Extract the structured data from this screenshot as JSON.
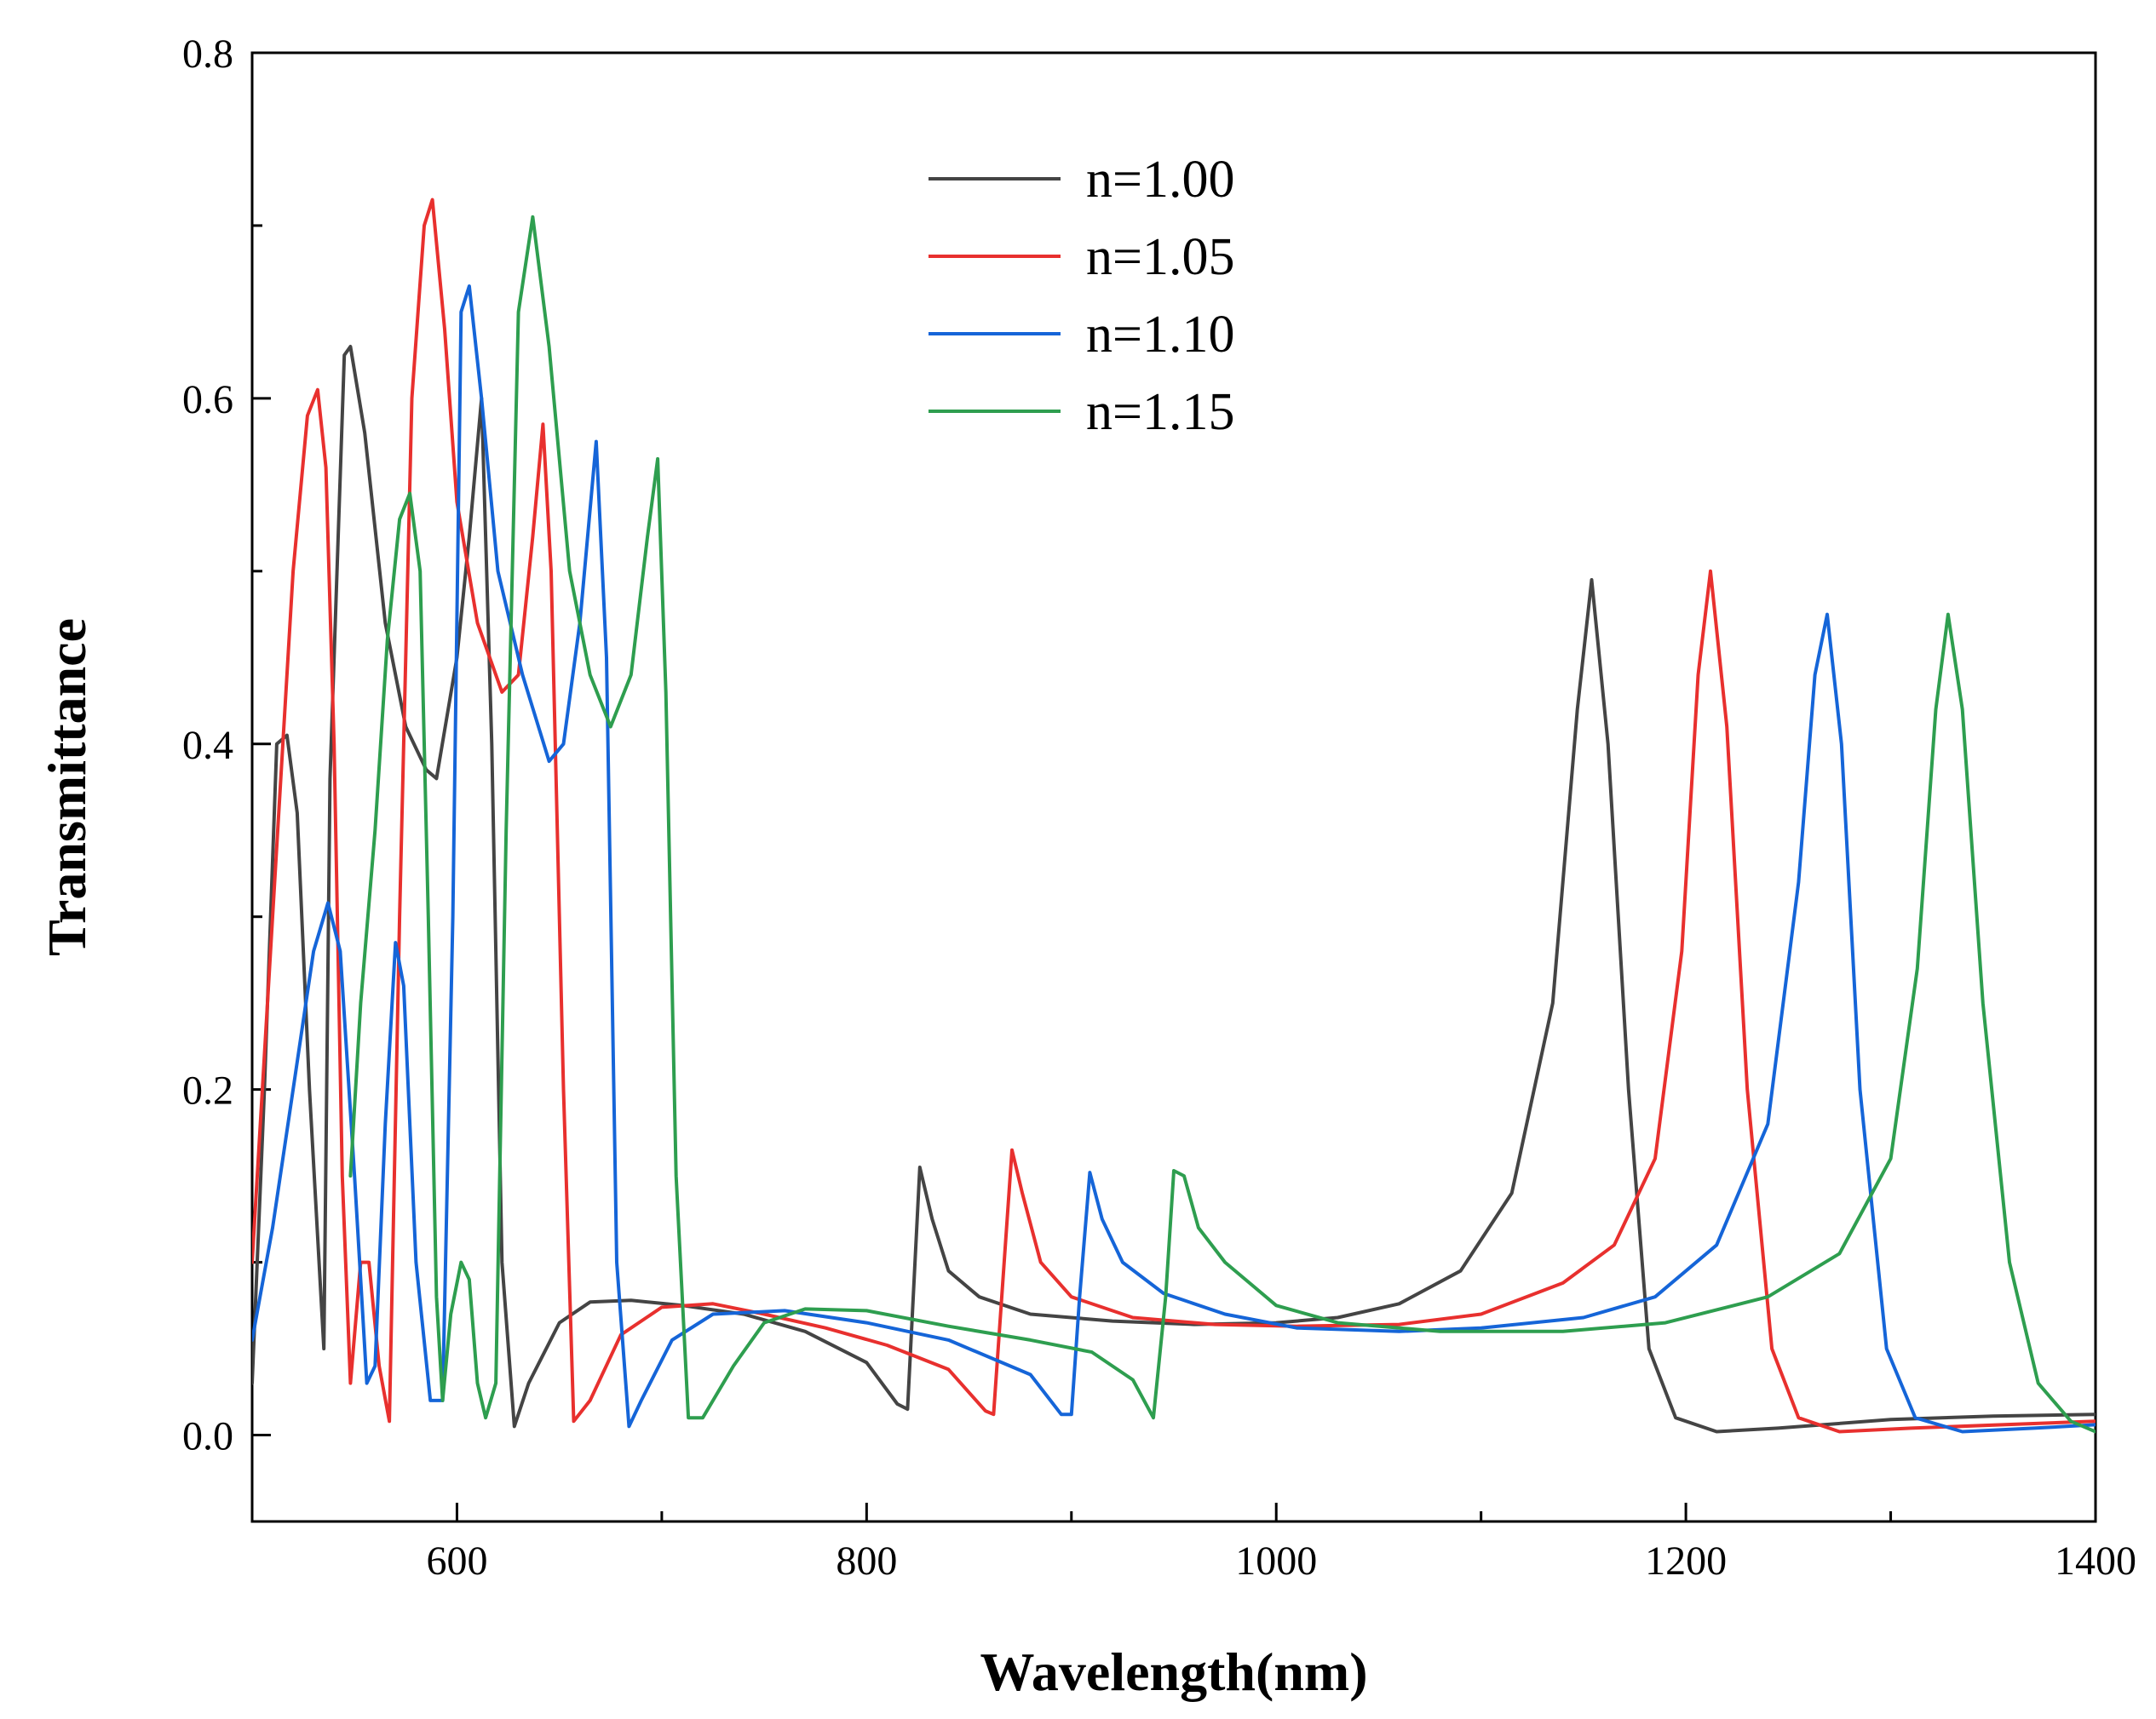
{
  "chart_data": {
    "type": "line",
    "title": "",
    "xlabel": "Wavelength(nm)",
    "ylabel": "Transmittance",
    "xlim": [
      500,
      1400
    ],
    "ylim": [
      -0.05,
      0.8
    ],
    "xticks": [
      600,
      800,
      1000,
      1200,
      1400
    ],
    "xtick_labels": [
      "600",
      "800",
      "1000",
      "1200",
      "1400"
    ],
    "xminor": [
      500,
      700,
      900,
      1100,
      1300
    ],
    "yticks": [
      0.0,
      0.2,
      0.4,
      0.6,
      0.8
    ],
    "ytick_labels": [
      "0.0",
      "0.2",
      "0.4",
      "0.6",
      "0.8"
    ],
    "yminor": [
      0.1,
      0.3,
      0.5,
      0.7
    ],
    "grid": false,
    "legend_position": "top-center",
    "series": [
      {
        "name": "n=1.00",
        "color": "#444444",
        "points": [
          [
            500,
            0.03
          ],
          [
            506,
            0.2
          ],
          [
            512,
            0.4
          ],
          [
            517,
            0.405
          ],
          [
            522,
            0.36
          ],
          [
            528,
            0.2
          ],
          [
            535,
            0.05
          ],
          [
            538,
            0.38
          ],
          [
            545,
            0.625
          ],
          [
            548,
            0.63
          ],
          [
            555,
            0.58
          ],
          [
            565,
            0.47
          ],
          [
            575,
            0.41
          ],
          [
            585,
            0.385
          ],
          [
            590,
            0.38
          ],
          [
            600,
            0.45
          ],
          [
            606,
            0.52
          ],
          [
            612,
            0.6
          ],
          [
            617,
            0.4
          ],
          [
            622,
            0.1
          ],
          [
            628,
            0.005
          ],
          [
            635,
            0.03
          ],
          [
            650,
            0.065
          ],
          [
            665,
            0.077
          ],
          [
            685,
            0.078
          ],
          [
            710,
            0.075
          ],
          [
            740,
            0.07
          ],
          [
            770,
            0.06
          ],
          [
            800,
            0.042
          ],
          [
            815,
            0.018
          ],
          [
            820,
            0.015
          ],
          [
            826,
            0.155
          ],
          [
            832,
            0.125
          ],
          [
            840,
            0.095
          ],
          [
            855,
            0.08
          ],
          [
            880,
            0.07
          ],
          [
            920,
            0.066
          ],
          [
            960,
            0.064
          ],
          [
            1000,
            0.065
          ],
          [
            1030,
            0.068
          ],
          [
            1060,
            0.076
          ],
          [
            1090,
            0.095
          ],
          [
            1115,
            0.14
          ],
          [
            1135,
            0.25
          ],
          [
            1147,
            0.42
          ],
          [
            1154,
            0.495
          ],
          [
            1162,
            0.4
          ],
          [
            1172,
            0.2
          ],
          [
            1182,
            0.05
          ],
          [
            1195,
            0.01
          ],
          [
            1215,
            0.002
          ],
          [
            1245,
            0.004
          ],
          [
            1300,
            0.009
          ],
          [
            1350,
            0.011
          ],
          [
            1400,
            0.012
          ]
        ]
      },
      {
        "name": "n=1.05",
        "color": "#e8302e",
        "points": [
          [
            500,
            0.1
          ],
          [
            510,
            0.3
          ],
          [
            520,
            0.5
          ],
          [
            527,
            0.59
          ],
          [
            532,
            0.605
          ],
          [
            536,
            0.56
          ],
          [
            540,
            0.4
          ],
          [
            544,
            0.15
          ],
          [
            548,
            0.03
          ],
          [
            553,
            0.1
          ],
          [
            557,
            0.1
          ],
          [
            562,
            0.04
          ],
          [
            567,
            0.008
          ],
          [
            572,
            0.3
          ],
          [
            578,
            0.6
          ],
          [
            584,
            0.7
          ],
          [
            588,
            0.715
          ],
          [
            594,
            0.64
          ],
          [
            600,
            0.54
          ],
          [
            610,
            0.47
          ],
          [
            622,
            0.43
          ],
          [
            630,
            0.44
          ],
          [
            637,
            0.52
          ],
          [
            642,
            0.585
          ],
          [
            646,
            0.5
          ],
          [
            652,
            0.2
          ],
          [
            657,
            0.008
          ],
          [
            665,
            0.02
          ],
          [
            680,
            0.058
          ],
          [
            700,
            0.074
          ],
          [
            725,
            0.076
          ],
          [
            750,
            0.07
          ],
          [
            780,
            0.062
          ],
          [
            810,
            0.052
          ],
          [
            840,
            0.038
          ],
          [
            858,
            0.014
          ],
          [
            862,
            0.012
          ],
          [
            866,
            0.08
          ],
          [
            871,
            0.165
          ],
          [
            876,
            0.14
          ],
          [
            885,
            0.1
          ],
          [
            900,
            0.08
          ],
          [
            930,
            0.068
          ],
          [
            970,
            0.064
          ],
          [
            1010,
            0.063
          ],
          [
            1060,
            0.064
          ],
          [
            1100,
            0.07
          ],
          [
            1140,
            0.088
          ],
          [
            1165,
            0.11
          ],
          [
            1185,
            0.16
          ],
          [
            1198,
            0.28
          ],
          [
            1206,
            0.44
          ],
          [
            1212,
            0.5
          ],
          [
            1220,
            0.41
          ],
          [
            1230,
            0.2
          ],
          [
            1242,
            0.05
          ],
          [
            1255,
            0.01
          ],
          [
            1275,
            0.002
          ],
          [
            1310,
            0.004
          ],
          [
            1400,
            0.008
          ]
        ]
      },
      {
        "name": "n=1.10",
        "color": "#1565d8",
        "points": [
          [
            500,
            0.055
          ],
          [
            510,
            0.12
          ],
          [
            520,
            0.2
          ],
          [
            530,
            0.28
          ],
          [
            537,
            0.308
          ],
          [
            543,
            0.28
          ],
          [
            550,
            0.15
          ],
          [
            556,
            0.03
          ],
          [
            560,
            0.04
          ],
          [
            565,
            0.18
          ],
          [
            570,
            0.285
          ],
          [
            574,
            0.26
          ],
          [
            580,
            0.1
          ],
          [
            587,
            0.02
          ],
          [
            593,
            0.02
          ],
          [
            598,
            0.3
          ],
          [
            602,
            0.65
          ],
          [
            606,
            0.665
          ],
          [
            612,
            0.6
          ],
          [
            620,
            0.5
          ],
          [
            632,
            0.44
          ],
          [
            645,
            0.39
          ],
          [
            652,
            0.4
          ],
          [
            660,
            0.47
          ],
          [
            668,
            0.575
          ],
          [
            673,
            0.45
          ],
          [
            678,
            0.1
          ],
          [
            684,
            0.005
          ],
          [
            690,
            0.02
          ],
          [
            705,
            0.055
          ],
          [
            725,
            0.07
          ],
          [
            760,
            0.072
          ],
          [
            800,
            0.065
          ],
          [
            840,
            0.055
          ],
          [
            880,
            0.035
          ],
          [
            895,
            0.012
          ],
          [
            900,
            0.012
          ],
          [
            904,
            0.08
          ],
          [
            909,
            0.152
          ],
          [
            915,
            0.125
          ],
          [
            925,
            0.1
          ],
          [
            945,
            0.082
          ],
          [
            975,
            0.07
          ],
          [
            1010,
            0.062
          ],
          [
            1060,
            0.06
          ],
          [
            1100,
            0.062
          ],
          [
            1150,
            0.068
          ],
          [
            1185,
            0.08
          ],
          [
            1215,
            0.11
          ],
          [
            1240,
            0.18
          ],
          [
            1255,
            0.32
          ],
          [
            1263,
            0.44
          ],
          [
            1269,
            0.475
          ],
          [
            1276,
            0.4
          ],
          [
            1285,
            0.2
          ],
          [
            1298,
            0.05
          ],
          [
            1312,
            0.01
          ],
          [
            1335,
            0.002
          ],
          [
            1370,
            0.004
          ],
          [
            1400,
            0.006
          ]
        ]
      },
      {
        "name": "n=1.15",
        "color": "#2e9e4f",
        "points": [
          [
            548,
            0.15
          ],
          [
            553,
            0.25
          ],
          [
            560,
            0.35
          ],
          [
            566,
            0.46
          ],
          [
            572,
            0.53
          ],
          [
            577,
            0.545
          ],
          [
            582,
            0.5
          ],
          [
            586,
            0.3
          ],
          [
            590,
            0.08
          ],
          [
            593,
            0.02
          ],
          [
            597,
            0.07
          ],
          [
            602,
            0.1
          ],
          [
            606,
            0.09
          ],
          [
            610,
            0.03
          ],
          [
            614,
            0.01
          ],
          [
            619,
            0.03
          ],
          [
            624,
            0.35
          ],
          [
            630,
            0.65
          ],
          [
            637,
            0.705
          ],
          [
            645,
            0.63
          ],
          [
            655,
            0.5
          ],
          [
            665,
            0.44
          ],
          [
            675,
            0.41
          ],
          [
            685,
            0.44
          ],
          [
            693,
            0.52
          ],
          [
            698,
            0.565
          ],
          [
            702,
            0.43
          ],
          [
            707,
            0.15
          ],
          [
            713,
            0.01
          ],
          [
            720,
            0.01
          ],
          [
            735,
            0.04
          ],
          [
            750,
            0.065
          ],
          [
            770,
            0.073
          ],
          [
            800,
            0.072
          ],
          [
            840,
            0.063
          ],
          [
            880,
            0.055
          ],
          [
            910,
            0.048
          ],
          [
            930,
            0.032
          ],
          [
            940,
            0.01
          ],
          [
            946,
            0.08
          ],
          [
            950,
            0.153
          ],
          [
            955,
            0.15
          ],
          [
            962,
            0.12
          ],
          [
            975,
            0.1
          ],
          [
            1000,
            0.075
          ],
          [
            1030,
            0.065
          ],
          [
            1080,
            0.06
          ],
          [
            1140,
            0.06
          ],
          [
            1190,
            0.065
          ],
          [
            1240,
            0.08
          ],
          [
            1275,
            0.105
          ],
          [
            1300,
            0.16
          ],
          [
            1313,
            0.27
          ],
          [
            1322,
            0.42
          ],
          [
            1328,
            0.475
          ],
          [
            1335,
            0.42
          ],
          [
            1345,
            0.25
          ],
          [
            1358,
            0.1
          ],
          [
            1372,
            0.03
          ],
          [
            1388,
            0.008
          ],
          [
            1400,
            0.002
          ]
        ]
      }
    ]
  }
}
